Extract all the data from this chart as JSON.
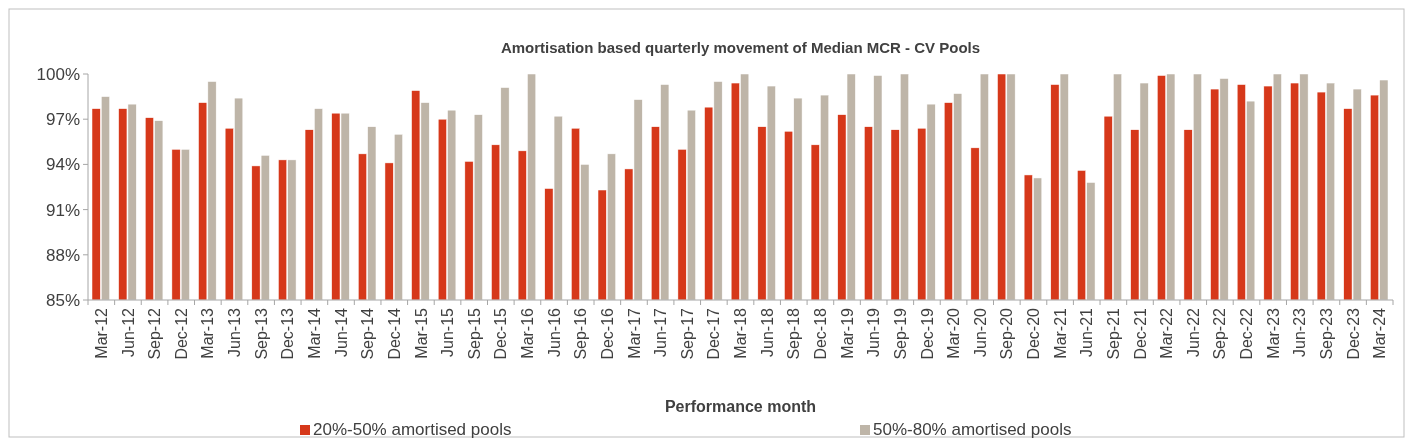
{
  "chart_data": {
    "type": "bar",
    "title": "Amortisation based quarterly movement of Median MCR - CV Pools",
    "xlabel": "Performance month",
    "categories": [
      "Mar-12",
      "Jun-12",
      "Sep-12",
      "Dec-12",
      "Mar-13",
      "Jun-13",
      "Sep-13",
      "Dec-13",
      "Mar-14",
      "Jun-14",
      "Sep-14",
      "Dec-14",
      "Mar-15",
      "Jun-15",
      "Sep-15",
      "Dec-15",
      "Mar-16",
      "Jun-16",
      "Sep-16",
      "Dec-16",
      "Mar-17",
      "Jun-17",
      "Sep-17",
      "Dec-17",
      "Mar-18",
      "Jun-18",
      "Sep-18",
      "Dec-18",
      "Mar-19",
      "Jun-19",
      "Sep-19",
      "Dec-19",
      "Mar-20",
      "Jun-20",
      "Sep-20",
      "Dec-20",
      "Mar-21",
      "Jun-21",
      "Sep-21",
      "Dec-21",
      "Mar-22",
      "Jun-22",
      "Sep-22",
      "Dec-22",
      "Mar-23",
      "Jun-23",
      "Sep-23",
      "Dec-23",
      "Mar-24"
    ],
    "series": [
      {
        "name": "20%-50% amortised pools",
        "color": "#d6381a",
        "values": [
          97.7,
          97.7,
          97.1,
          95.0,
          98.1,
          96.4,
          93.9,
          94.3,
          96.3,
          97.4,
          94.7,
          94.1,
          98.9,
          97.0,
          94.2,
          95.3,
          94.9,
          92.4,
          96.4,
          92.3,
          93.7,
          96.5,
          95.0,
          97.8,
          99.4,
          96.5,
          96.2,
          95.3,
          97.3,
          96.5,
          96.3,
          96.4,
          98.1,
          95.1,
          100,
          93.3,
          99.3,
          93.6,
          97.2,
          96.3,
          99.9,
          96.3,
          99.0,
          99.3,
          99.2,
          99.4,
          98.8,
          97.7,
          98.6
        ]
      },
      {
        "name": "50%-80% amortised pools",
        "color": "#beb5a8",
        "values": [
          98.5,
          98.0,
          96.9,
          95.0,
          99.5,
          98.4,
          94.6,
          94.3,
          97.7,
          97.4,
          96.5,
          96.0,
          98.1,
          97.6,
          97.3,
          99.1,
          100,
          97.2,
          94.0,
          94.7,
          98.3,
          99.3,
          97.6,
          99.5,
          100,
          99.2,
          98.4,
          98.6,
          100,
          99.9,
          100,
          98.0,
          98.7,
          100,
          100,
          93.1,
          100,
          92.8,
          100,
          99.4,
          100,
          100,
          99.7,
          98.2,
          100,
          100,
          99.4,
          99.0,
          99.6
        ]
      }
    ],
    "ylim": [
      85,
      100
    ],
    "yticks": [
      {
        "value": 85,
        "label": "85%"
      },
      {
        "value": 88,
        "label": "88%"
      },
      {
        "value": 91,
        "label": "91%"
      },
      {
        "value": 94,
        "label": "94%"
      },
      {
        "value": 97,
        "label": "97%"
      },
      {
        "value": 100,
        "label": "100%"
      }
    ],
    "legend": "bottom"
  }
}
